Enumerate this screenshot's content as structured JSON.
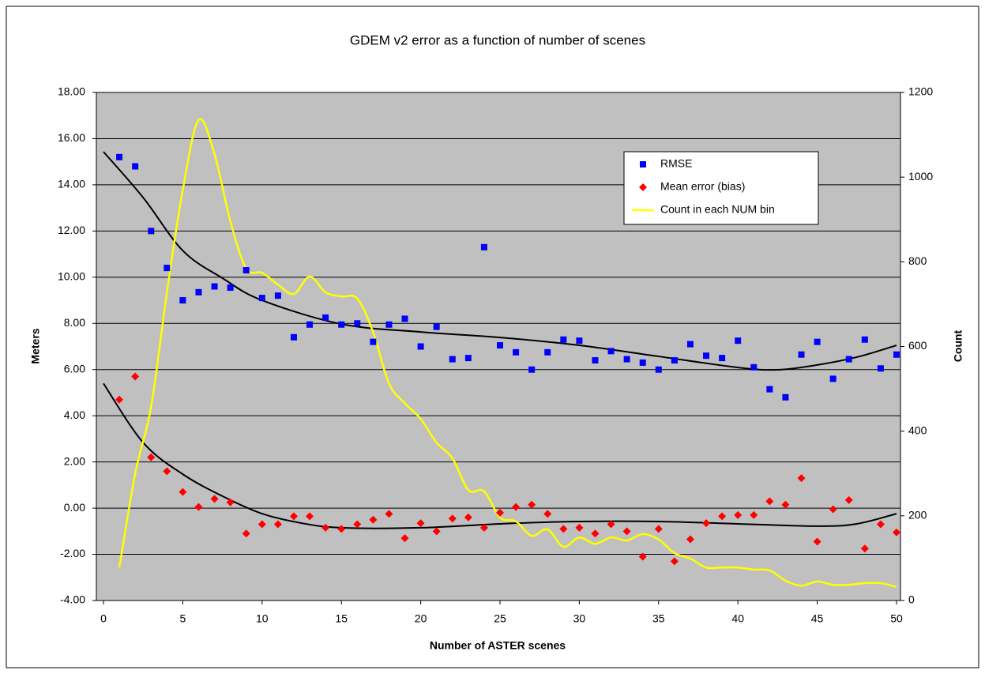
{
  "chart_data": {
    "type": "scatter",
    "title": "GDEM v2 error as a function of number of scenes",
    "x_label": "Number of ASTER scenes",
    "y_label": "Meters",
    "y2_label": "Count",
    "x": [
      1,
      2,
      3,
      4,
      5,
      6,
      7,
      8,
      9,
      10,
      11,
      12,
      13,
      14,
      15,
      16,
      17,
      18,
      19,
      20,
      21,
      22,
      23,
      24,
      25,
      26,
      27,
      28,
      29,
      30,
      31,
      32,
      33,
      34,
      35,
      36,
      37,
      38,
      39,
      40,
      41,
      42,
      43,
      44,
      45,
      46,
      47,
      48,
      49,
      50
    ],
    "series": [
      {
        "name": "RMSE",
        "color": "#0000ff",
        "marker": "square",
        "values": [
          15.2,
          14.8,
          12.0,
          10.4,
          9.0,
          9.35,
          9.6,
          9.55,
          10.3,
          9.1,
          9.2,
          7.4,
          7.95,
          8.25,
          7.95,
          8.0,
          7.2,
          7.95,
          8.2,
          7.0,
          7.85,
          6.45,
          6.5,
          11.3,
          7.05,
          6.75,
          6.0,
          6.75,
          7.3,
          7.25,
          6.4,
          6.8,
          6.45,
          6.3,
          6.0,
          6.4,
          7.1,
          6.6,
          6.5,
          7.25,
          6.1,
          5.15,
          4.8,
          6.65,
          7.2,
          5.6,
          6.45,
          7.3,
          6.05,
          6.65
        ]
      },
      {
        "name": "Mean error (bias)",
        "color": "#ff0000",
        "marker": "diamond",
        "values": [
          4.7,
          5.7,
          2.2,
          1.6,
          0.7,
          0.05,
          0.4,
          0.25,
          -1.1,
          -0.7,
          -0.7,
          -0.35,
          -0.35,
          -0.85,
          -0.9,
          -0.7,
          -0.5,
          -0.25,
          -1.3,
          -0.65,
          -1.0,
          -0.45,
          -0.4,
          -0.85,
          -0.2,
          0.05,
          0.15,
          -0.25,
          -0.9,
          -0.85,
          -1.1,
          -0.7,
          -1.0,
          -2.1,
          -0.9,
          -2.3,
          -1.35,
          -0.65,
          -0.35,
          -0.3,
          -0.3,
          0.3,
          0.15,
          1.3,
          -1.45,
          -0.05,
          0.35,
          -1.75,
          -0.7,
          -1.05
        ]
      },
      {
        "name": "Count in each NUM bin",
        "color": "#ffff00",
        "marker": "line",
        "axis": "y2",
        "values": [
          78,
          300,
          457,
          728,
          970,
          1135,
          1054,
          896,
          784,
          774,
          746,
          724,
          765,
          728,
          718,
          713,
          634,
          513,
          466,
          429,
          373,
          336,
          261,
          258,
          196,
          187,
          153,
          168,
          127,
          149,
          134,
          149,
          142,
          157,
          144,
          112,
          99,
          78,
          78,
          78,
          73,
          71,
          47,
          35,
          45,
          37,
          37,
          41,
          41,
          32
        ]
      }
    ],
    "trendlines": [
      {
        "color": "#000000",
        "x": [
          0,
          2.5,
          5,
          7.5,
          10,
          15,
          20,
          25,
          30,
          35,
          40,
          42.5,
          45,
          47.5,
          50
        ],
        "values": [
          15.43,
          13.45,
          11.15,
          9.96,
          9.0,
          7.97,
          7.63,
          7.39,
          7.05,
          6.57,
          6.09,
          5.99,
          6.2,
          6.54,
          7.05
        ]
      },
      {
        "color": "#000000",
        "x": [
          0,
          2.5,
          5,
          7.5,
          10,
          12.5,
          15,
          20,
          25,
          30,
          35,
          40,
          45,
          47.5,
          50
        ],
        "values": [
          5.4,
          2.84,
          1.47,
          0.52,
          -0.24,
          -0.65,
          -0.85,
          -0.85,
          -0.68,
          -0.58,
          -0.58,
          -0.68,
          -0.78,
          -0.68,
          -0.24
        ]
      }
    ],
    "xlim": [
      0,
      50
    ],
    "xticks": [
      0,
      5,
      10,
      15,
      20,
      25,
      30,
      35,
      40,
      45,
      50
    ],
    "ylim": [
      -4,
      18
    ],
    "yticks": [
      {
        "value": -4,
        "label": "-4.00"
      },
      {
        "value": -2,
        "label": "-2.00"
      },
      {
        "value": 0,
        "label": "0.00"
      },
      {
        "value": 2,
        "label": "2.00"
      },
      {
        "value": 4,
        "label": "4.00"
      },
      {
        "value": 6,
        "label": "6.00"
      },
      {
        "value": 8,
        "label": "8.00"
      },
      {
        "value": 10,
        "label": "10.00"
      },
      {
        "value": 12,
        "label": "12.00"
      },
      {
        "value": 14,
        "label": "14.00"
      },
      {
        "value": 16,
        "label": "16.00"
      },
      {
        "value": 18,
        "label": "18.00"
      }
    ],
    "y2lim": [
      0,
      1200
    ],
    "y2ticks": [
      0,
      200,
      400,
      600,
      800,
      1000,
      1200
    ],
    "grid": true,
    "plot_background": "#c0c0c0",
    "legend": "upper-right"
  }
}
